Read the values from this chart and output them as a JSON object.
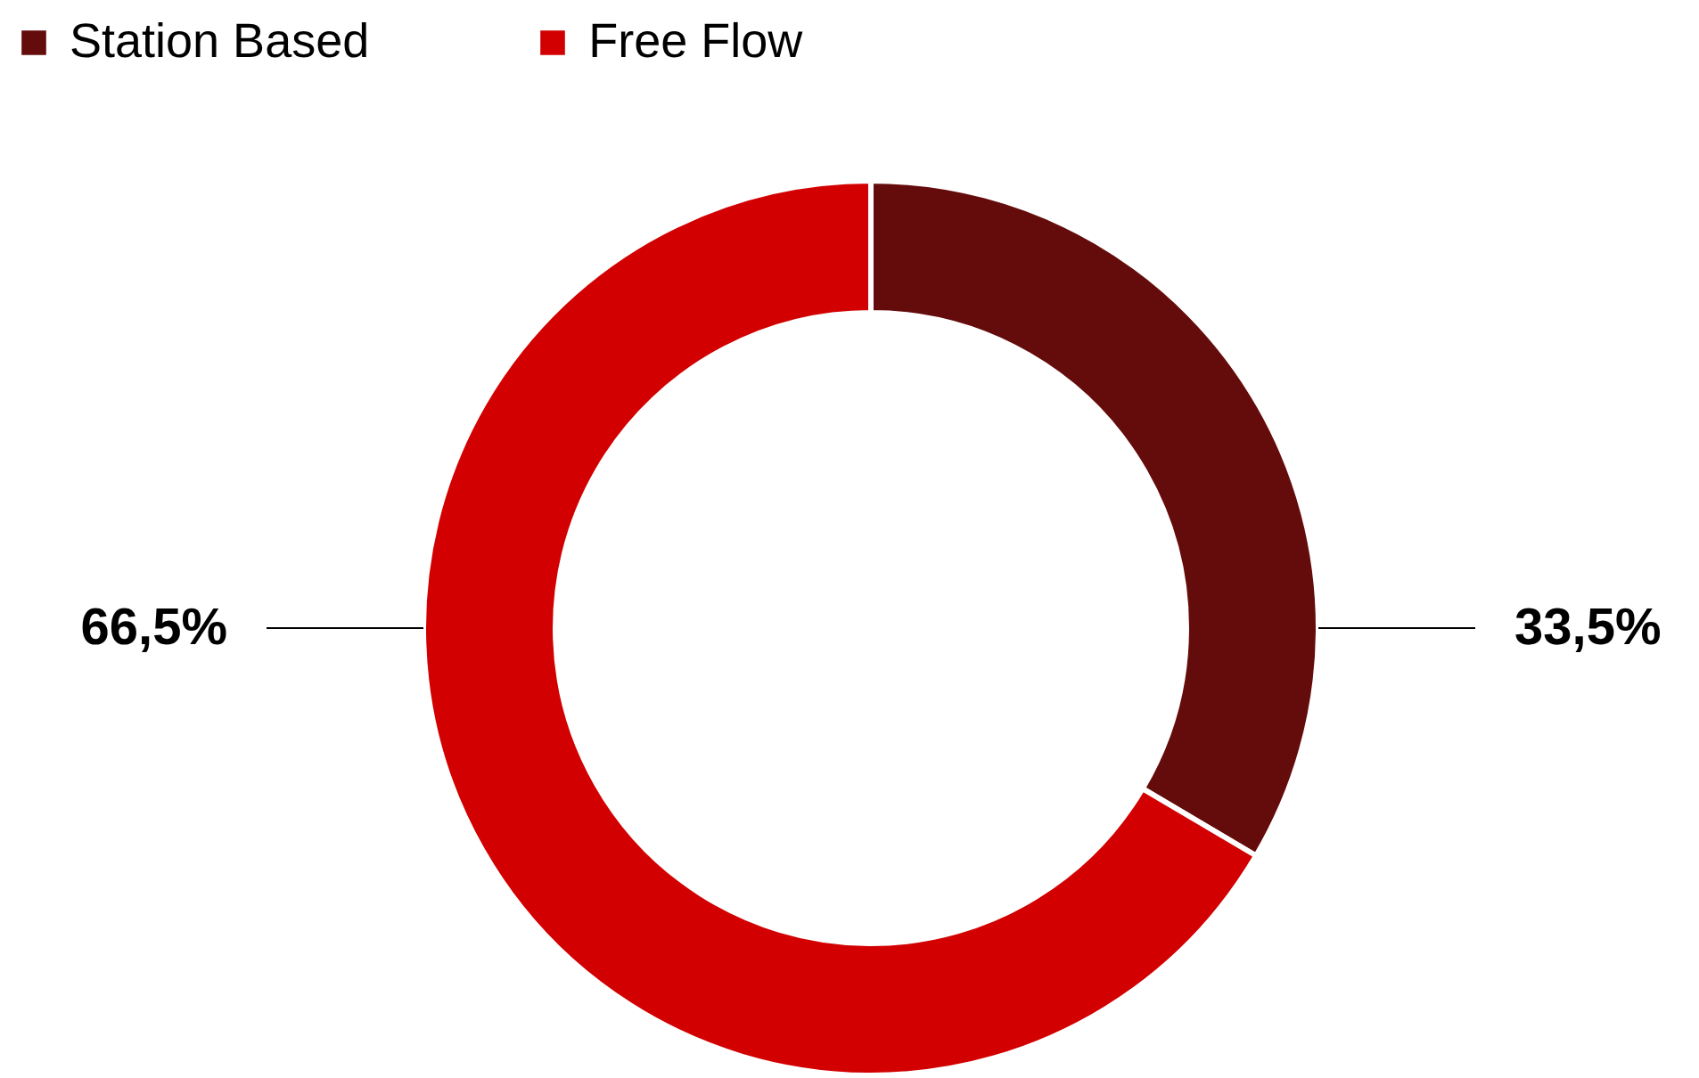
{
  "chart_data": {
    "type": "donut",
    "categories": [
      "Station Based",
      "Free Flow"
    ],
    "values": [
      33.5,
      66.5
    ],
    "colors": [
      "#640c0b",
      "#d20000"
    ],
    "value_labels": [
      "33,5%",
      "66,5%"
    ],
    "legend": "top left"
  }
}
